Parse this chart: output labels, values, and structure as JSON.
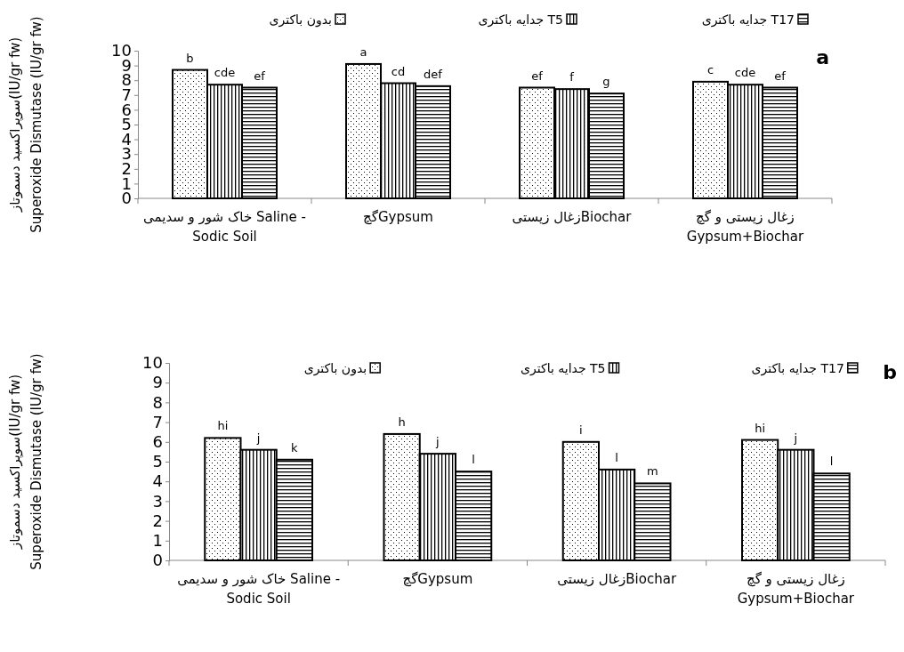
{
  "chart_data": [
    {
      "type": "bar",
      "title": "a",
      "ylabel": "سوپراکسید دسموتاز(IU/gr fw)\nSuperoxide Dismutase (IU/gr fw)",
      "categories": [
        "خاک شور و سدیمی Saline - Sodic Soil",
        "گچGypsum",
        "زغال زیستیBiochar",
        "زغال زیستی و گچ Gypsum+Biochar"
      ],
      "ylim": [
        0,
        10
      ],
      "yticks": [
        0,
        1,
        2,
        3,
        4,
        5,
        6,
        7,
        8,
        9,
        10
      ],
      "legend": "top",
      "grid": false,
      "series": [
        {
          "name": "بدون باکتری",
          "color": "#000000",
          "values": [
            8.7,
            9.1,
            7.5,
            7.9
          ],
          "value_labels": [
            "b",
            "a",
            "ef",
            "c"
          ]
        },
        {
          "name": "جدایه باکتری T5",
          "color": "#000000",
          "values": [
            7.7,
            7.8,
            7.4,
            7.7
          ],
          "value_labels": [
            "cde",
            "cd",
            "f",
            "cde"
          ]
        },
        {
          "name": "جدایه باکتری T17",
          "color": "#000000",
          "values": [
            7.5,
            7.6,
            7.1,
            7.5
          ],
          "value_labels": [
            "ef",
            "def",
            "g",
            "ef"
          ]
        }
      ]
    },
    {
      "type": "bar",
      "title": "b",
      "ylabel": "سوپراکسید دسموتاز(IU/gr fw)\nSuperoxide Dismutase (IU/gr fw)",
      "categories": [
        "خاک شور و سدیمی Saline - Sodic Soil",
        "گچGypsum",
        "زغال زیستیBiochar",
        "زغال زیستی و گچ Gypsum+Biochar"
      ],
      "ylim": [
        0,
        10
      ],
      "yticks": [
        0,
        1,
        2,
        3,
        4,
        5,
        6,
        7,
        8,
        9,
        10
      ],
      "legend": "top",
      "grid": false,
      "series": [
        {
          "name": "بدون باکتری",
          "color": "#000000",
          "values": [
            6.2,
            6.4,
            6.0,
            6.1
          ],
          "value_labels": [
            "hi",
            "h",
            "i",
            "hi"
          ]
        },
        {
          "name": "جدایه باکتری T5",
          "color": "#000000",
          "values": [
            5.6,
            5.4,
            4.6,
            5.6
          ],
          "value_labels": [
            "j",
            "j",
            "l",
            "j"
          ]
        },
        {
          "name": "جدایه باکتری T17",
          "color": "#000000",
          "values": [
            5.1,
            4.5,
            3.9,
            4.4
          ],
          "value_labels": [
            "k",
            "l",
            "m",
            "l"
          ]
        }
      ]
    }
  ]
}
